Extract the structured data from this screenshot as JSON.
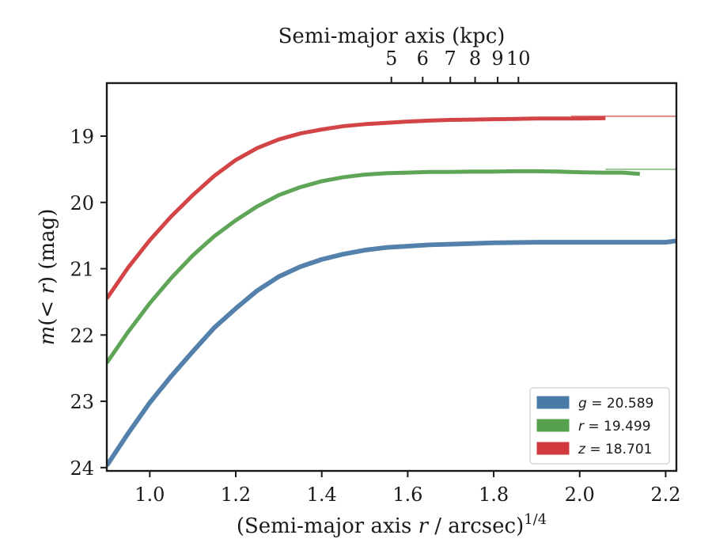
{
  "chart_data": {
    "type": "line",
    "xlabel": "(Semi-major axis r / arcsec)",
    "xlabel_exponent": "1/4",
    "ylabel": "m(< r) (mag)",
    "top_xlabel": "Semi-major axis (kpc)",
    "xlim": [
      0.9,
      2.225
    ],
    "ylim": [
      24.05,
      18.2
    ],
    "y_inverted": true,
    "x_ticks": [
      1.0,
      1.2,
      1.4,
      1.6,
      1.8,
      2.0,
      2.2
    ],
    "x_tick_labels": [
      "1.0",
      "1.2",
      "1.4",
      "1.6",
      "1.8",
      "2.0",
      "2.2"
    ],
    "y_ticks": [
      19,
      20,
      21,
      22,
      23,
      24
    ],
    "y_tick_labels": [
      "19",
      "20",
      "21",
      "22",
      "23",
      "24"
    ],
    "top_ticks_kpc": [
      5,
      6,
      7,
      8,
      9,
      10
    ],
    "top_tick_labels": [
      "5",
      "6",
      "7",
      "8",
      "9",
      "10"
    ],
    "kpc_per_arcsec": 0.84,
    "grid": false,
    "legend_position": "lower-right",
    "series": [
      {
        "name": "g = 20.589",
        "band": "g",
        "total_mag": 20.589,
        "color": "#4a7aa7",
        "band_width_mag": 0.07,
        "x": [
          0.9,
          0.95,
          1.0,
          1.05,
          1.1,
          1.15,
          1.2,
          1.25,
          1.3,
          1.35,
          1.4,
          1.45,
          1.5,
          1.55,
          1.6,
          1.65,
          1.7,
          1.75,
          1.8,
          1.85,
          1.9,
          1.95,
          2.0,
          2.05,
          2.1,
          2.15,
          2.2,
          2.225
        ],
        "y": [
          23.97,
          23.48,
          23.02,
          22.62,
          22.25,
          21.89,
          21.6,
          21.33,
          21.12,
          20.97,
          20.86,
          20.78,
          20.72,
          20.68,
          20.66,
          20.64,
          20.63,
          20.62,
          20.61,
          20.605,
          20.6,
          20.6,
          20.6,
          20.6,
          20.6,
          20.6,
          20.6,
          20.58
        ]
      },
      {
        "name": "r = 19.499",
        "band": "r",
        "total_mag": 19.499,
        "color": "#56a04e",
        "band_width_mag": 0.06,
        "x": [
          0.9,
          0.95,
          1.0,
          1.05,
          1.1,
          1.15,
          1.2,
          1.25,
          1.3,
          1.35,
          1.4,
          1.45,
          1.5,
          1.55,
          1.6,
          1.65,
          1.7,
          1.75,
          1.8,
          1.85,
          1.9,
          1.95,
          2.0,
          2.05,
          2.1,
          2.14
        ],
        "y": [
          22.42,
          21.95,
          21.52,
          21.14,
          20.8,
          20.51,
          20.27,
          20.06,
          19.89,
          19.77,
          19.68,
          19.62,
          19.58,
          19.56,
          19.55,
          19.54,
          19.54,
          19.535,
          19.535,
          19.53,
          19.53,
          19.535,
          19.545,
          19.55,
          19.55,
          19.57
        ],
        "extension_x": [
          2.06,
          2.225
        ],
        "extension_y": [
          19.5,
          19.5
        ]
      },
      {
        "name": "z = 18.701",
        "band": "z",
        "total_mag": 18.701,
        "color": "#d03a3c",
        "band_width_mag": 0.05,
        "x": [
          0.9,
          0.95,
          1.0,
          1.05,
          1.1,
          1.15,
          1.2,
          1.25,
          1.3,
          1.35,
          1.4,
          1.45,
          1.5,
          1.55,
          1.6,
          1.65,
          1.7,
          1.75,
          1.8,
          1.85,
          1.9,
          1.95,
          2.0,
          2.06
        ],
        "y": [
          21.45,
          20.98,
          20.57,
          20.21,
          19.89,
          19.6,
          19.36,
          19.18,
          19.05,
          18.96,
          18.9,
          18.85,
          18.82,
          18.8,
          18.78,
          18.765,
          18.755,
          18.75,
          18.745,
          18.74,
          18.735,
          18.735,
          18.735,
          18.73
        ],
        "extension_x": [
          1.98,
          2.225
        ],
        "extension_y": [
          18.7,
          18.7
        ]
      }
    ]
  }
}
